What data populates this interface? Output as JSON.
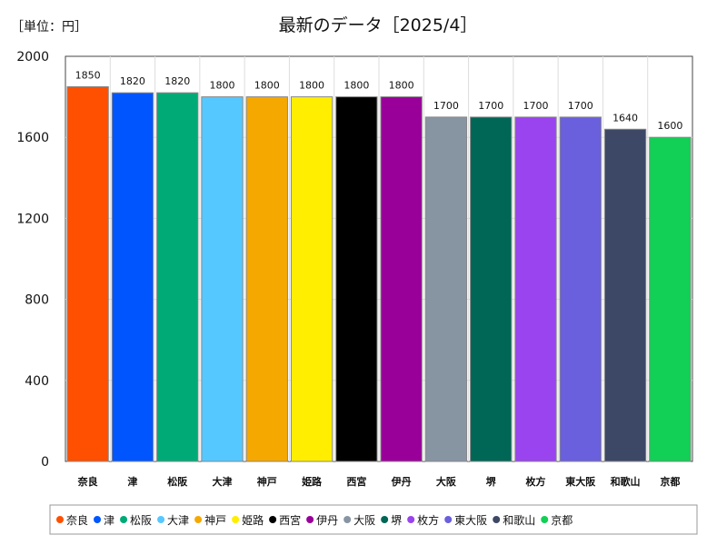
{
  "unit_label": "［単位：円］",
  "chart_data": {
    "type": "bar",
    "title": "最新のデータ［2025/4］",
    "categories": [
      "奈良",
      "津",
      "松阪",
      "大津",
      "神戸",
      "姫路",
      "西宮",
      "伊丹",
      "大阪",
      "堺",
      "枚方",
      "東大阪",
      "和歌山",
      "京都"
    ],
    "values": [
      1850,
      1820,
      1820,
      1800,
      1800,
      1800,
      1800,
      1800,
      1700,
      1700,
      1700,
      1700,
      1640,
      1600
    ],
    "colors": [
      "#ff4f00",
      "#0055ff",
      "#00aa77",
      "#55c8ff",
      "#f5a800",
      "#ffee00",
      "#000000",
      "#990099",
      "#8795a3",
      "#006655",
      "#9944ee",
      "#6a5fdd",
      "#3d4866",
      "#11d055"
    ],
    "ylim": [
      0,
      2000
    ],
    "yticks": [
      0,
      400,
      800,
      1200,
      1600,
      2000
    ],
    "legend_position": "bottom",
    "legend_entries": [
      "奈良",
      "津",
      "松阪",
      "大津",
      "神戸",
      "姫路",
      "西宮",
      "伊丹",
      "大阪",
      "堺",
      "枚方",
      "東大阪",
      "和歌山",
      "京都"
    ],
    "grid": true
  }
}
